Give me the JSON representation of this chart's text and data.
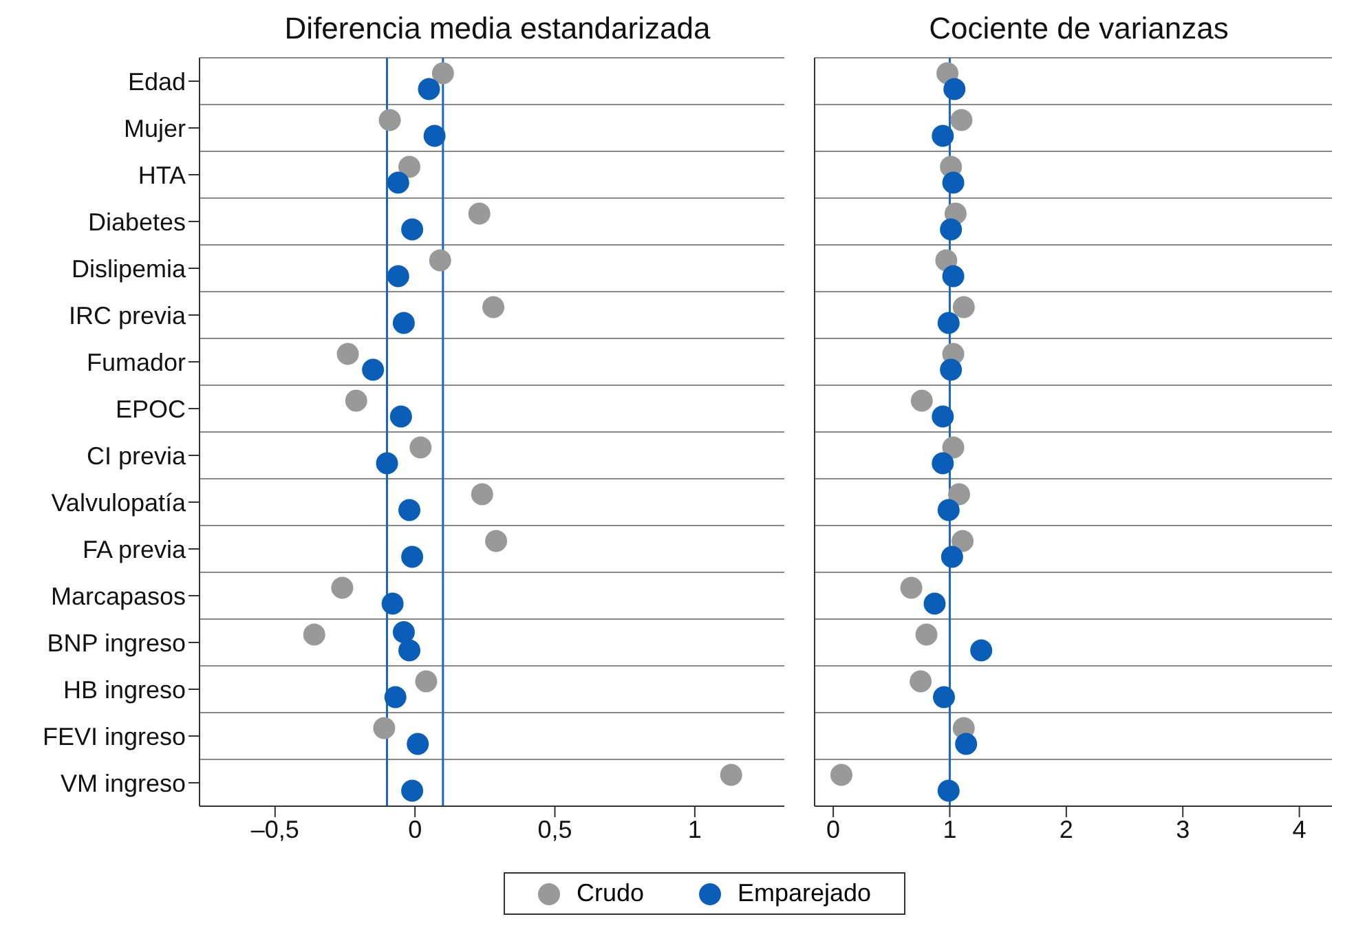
{
  "chart_data": [
    {
      "type": "scatter",
      "orientation": "horizontal",
      "title": "Diferencia media estandarizada",
      "categories": [
        "Edad",
        "Mujer",
        "HTA",
        "Diabetes",
        "Dislipemia",
        "IRC previa",
        "Fumador",
        "EPOC",
        "CI previa",
        "Valvulopatía",
        "FA previa",
        "Marcapasos",
        "BNP ingreso",
        "HB ingreso",
        "FEVI ingreso",
        "VM ingreso"
      ],
      "series": [
        {
          "name": "Crudo",
          "color": "#999999",
          "values": [
            0.1,
            -0.09,
            -0.02,
            0.23,
            0.09,
            0.28,
            -0.24,
            -0.21,
            0.02,
            0.24,
            0.29,
            -0.26,
            -0.36,
            0.04,
            -0.11,
            1.13
          ]
        },
        {
          "name": "Emparejado",
          "color": "#0a5eb8",
          "values": [
            0.05,
            0.07,
            -0.06,
            -0.01,
            -0.06,
            -0.04,
            -0.15,
            -0.05,
            -0.1,
            -0.02,
            -0.01,
            -0.08,
            -0.02,
            -0.07,
            0.01,
            -0.01
          ]
        },
        {
          "color": "#0a5eb8",
          "x": [
            "BNP ingreso"
          ],
          "values": [
            -0.04
          ]
        }
      ],
      "xlim": [
        -0.77,
        1.32
      ],
      "xticks": [
        {
          "value": -0.5,
          "label": "–0,5"
        },
        0,
        {
          "value": 0.5,
          "label": "0,5"
        },
        1
      ],
      "ref_lines": [
        {
          "axis": "x",
          "value": -0.1,
          "color": "#1a66c2"
        },
        {
          "axis": "x",
          "value": 0.1,
          "color": "#1a66c2"
        }
      ],
      "grid": "y",
      "marker": "circle",
      "legend": "bottom"
    },
    {
      "type": "scatter",
      "orientation": "horizontal",
      "title": "Cociente de varianzas",
      "categories": [
        null,
        null,
        null,
        null,
        null,
        null,
        null,
        null,
        null,
        null,
        null,
        null,
        null,
        null,
        null,
        null
      ],
      "series": [
        {
          "color": "#999999",
          "values": [
            0.98,
            1.1,
            1.01,
            1.05,
            0.97,
            1.12,
            1.03,
            0.76,
            1.03,
            1.08,
            1.11,
            0.67,
            0.8,
            0.75,
            1.12,
            0.07
          ]
        },
        {
          "color": "#0a5eb8",
          "values": [
            1.04,
            0.94,
            1.03,
            1.01,
            1.03,
            0.99,
            1.01,
            0.94,
            0.94,
            0.99,
            1.02,
            0.87,
            1.27,
            0.95,
            1.14,
            0.99
          ]
        }
      ],
      "xlim": [
        -0.16,
        4.28
      ],
      "xticks": [
        0,
        1,
        2,
        3,
        4
      ],
      "ref_lines": [
        {
          "axis": "x",
          "value": 1,
          "color": "#1a66c2"
        }
      ],
      "grid": "y",
      "marker": "circle",
      "tick_labels": "x"
    }
  ]
}
